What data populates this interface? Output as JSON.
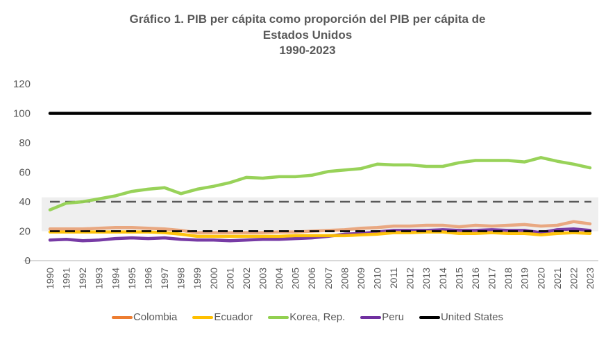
{
  "chart_data": {
    "type": "line",
    "title": "Gráfico 1. PIB per cápita como proporción del PIB per cápita de",
    "title_line2": "Estados Unidos",
    "subtitle": "1990-2023",
    "xlabel": "",
    "ylabel": "",
    "ylim": [
      0,
      120
    ],
    "yticks": [
      0,
      20,
      40,
      60,
      80,
      100,
      120
    ],
    "grid": false,
    "legend_position": "bottom",
    "x": [
      "1990",
      "1991",
      "1992",
      "1993",
      "1994",
      "1995",
      "1996",
      "1997",
      "1998",
      "1999",
      "2000",
      "2001",
      "2002",
      "2003",
      "2004",
      "2005",
      "2006",
      "2007",
      "2008",
      "2009",
      "2010",
      "2011",
      "2012",
      "2013",
      "2014",
      "2015",
      "2016",
      "2017",
      "2018",
      "2019",
      "2020",
      "2021",
      "2022",
      "2023"
    ],
    "shaded_band": {
      "from": 20,
      "to": 43,
      "color": "#efefef"
    },
    "reference_lines": [
      {
        "value": 40,
        "color": "#595959",
        "style": "dashed"
      },
      {
        "value": 20,
        "color": "#000000",
        "style": "dashed"
      }
    ],
    "series": [
      {
        "name": "Colombia",
        "color": "#ED7D31",
        "band_color": "#E8A37A",
        "values": [
          21.5,
          21.5,
          21.5,
          22,
          22.5,
          22.5,
          22,
          21.5,
          20.5,
          19,
          19,
          19,
          19,
          19,
          19.5,
          19.5,
          20,
          20.5,
          21,
          22,
          22.5,
          23.5,
          23.5,
          24,
          24,
          23,
          24,
          23.5,
          24,
          24.5,
          23.5,
          24,
          26.5,
          25
        ]
      },
      {
        "name": "Ecuador",
        "color": "#FFC000",
        "values": [
          19.5,
          19.5,
          19.5,
          19.5,
          19.5,
          19.5,
          19.5,
          19,
          18,
          16.5,
          16.5,
          16.5,
          16.5,
          16.5,
          16.5,
          17,
          17,
          17,
          17,
          17.5,
          18,
          19,
          19,
          19.5,
          19.5,
          18.5,
          18.5,
          19,
          18.5,
          18.5,
          17.5,
          18.5,
          19,
          18.5
        ]
      },
      {
        "name": "Korea, Rep.",
        "color": "#92D050",
        "early_color": "#A9D18E",
        "values": [
          34.5,
          39,
          40,
          42,
          44,
          47,
          48.5,
          49.5,
          45.5,
          48.5,
          50.5,
          53,
          56.5,
          56,
          57,
          57,
          58,
          60.5,
          61.5,
          62.5,
          65.5,
          65,
          65,
          64,
          64,
          66.5,
          68,
          68,
          68,
          67,
          70,
          67.5,
          65.5,
          63
        ]
      },
      {
        "name": "Peru",
        "color": "#7030A0",
        "values": [
          14,
          14.5,
          13.5,
          14,
          15,
          15.5,
          15,
          15.5,
          14.5,
          14,
          14,
          13.5,
          14,
          14.5,
          14.5,
          15,
          15.5,
          16.5,
          18,
          18.5,
          19.5,
          20.5,
          20.5,
          20.5,
          21,
          20.5,
          20.5,
          21,
          20.5,
          20.5,
          19,
          21,
          21.5,
          20.5
        ]
      },
      {
        "name": "United States",
        "color": "#000000",
        "values": [
          100,
          100,
          100,
          100,
          100,
          100,
          100,
          100,
          100,
          100,
          100,
          100,
          100,
          100,
          100,
          100,
          100,
          100,
          100,
          100,
          100,
          100,
          100,
          100,
          100,
          100,
          100,
          100,
          100,
          100,
          100,
          100,
          100,
          100
        ]
      }
    ]
  }
}
